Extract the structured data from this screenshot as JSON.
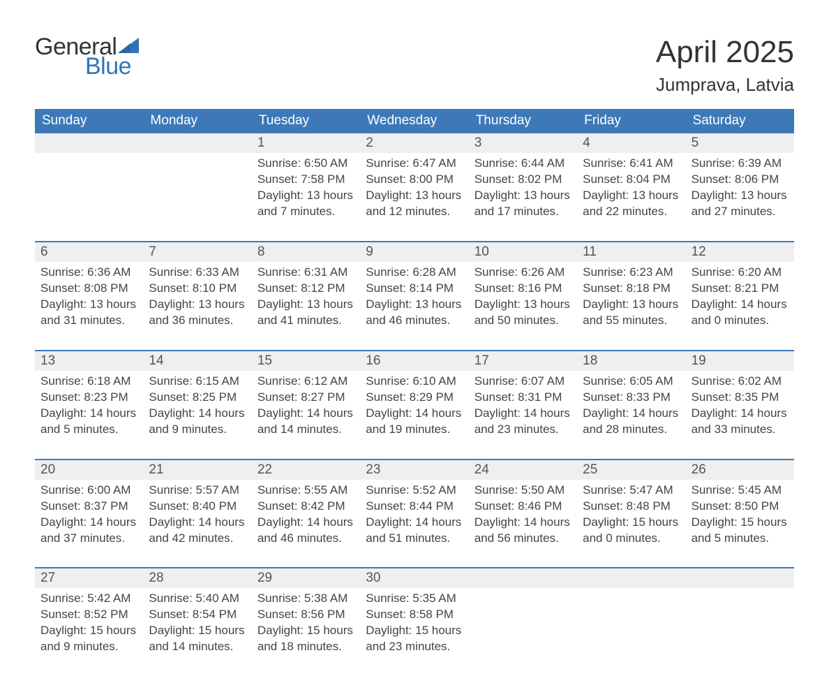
{
  "brand": {
    "word1": "General",
    "word2": "Blue",
    "accent_color": "#2f75b5"
  },
  "title": {
    "month": "April 2025",
    "location": "Jumprava, Latvia"
  },
  "colors": {
    "header_bg": "#3d79b8",
    "header_text": "#ffffff",
    "date_bg": "#efefef",
    "week_divider": "#3d79b8",
    "body_text": "#444444",
    "page_bg": "#ffffff"
  },
  "weekdays": [
    "Sunday",
    "Monday",
    "Tuesday",
    "Wednesday",
    "Thursday",
    "Friday",
    "Saturday"
  ],
  "weeks": [
    [
      null,
      null,
      {
        "n": "1",
        "sunrise": "6:50 AM",
        "sunset": "7:58 PM",
        "daylight1": "Daylight: 13 hours",
        "daylight2": "and 7 minutes."
      },
      {
        "n": "2",
        "sunrise": "6:47 AM",
        "sunset": "8:00 PM",
        "daylight1": "Daylight: 13 hours",
        "daylight2": "and 12 minutes."
      },
      {
        "n": "3",
        "sunrise": "6:44 AM",
        "sunset": "8:02 PM",
        "daylight1": "Daylight: 13 hours",
        "daylight2": "and 17 minutes."
      },
      {
        "n": "4",
        "sunrise": "6:41 AM",
        "sunset": "8:04 PM",
        "daylight1": "Daylight: 13 hours",
        "daylight2": "and 22 minutes."
      },
      {
        "n": "5",
        "sunrise": "6:39 AM",
        "sunset": "8:06 PM",
        "daylight1": "Daylight: 13 hours",
        "daylight2": "and 27 minutes."
      }
    ],
    [
      {
        "n": "6",
        "sunrise": "6:36 AM",
        "sunset": "8:08 PM",
        "daylight1": "Daylight: 13 hours",
        "daylight2": "and 31 minutes."
      },
      {
        "n": "7",
        "sunrise": "6:33 AM",
        "sunset": "8:10 PM",
        "daylight1": "Daylight: 13 hours",
        "daylight2": "and 36 minutes."
      },
      {
        "n": "8",
        "sunrise": "6:31 AM",
        "sunset": "8:12 PM",
        "daylight1": "Daylight: 13 hours",
        "daylight2": "and 41 minutes."
      },
      {
        "n": "9",
        "sunrise": "6:28 AM",
        "sunset": "8:14 PM",
        "daylight1": "Daylight: 13 hours",
        "daylight2": "and 46 minutes."
      },
      {
        "n": "10",
        "sunrise": "6:26 AM",
        "sunset": "8:16 PM",
        "daylight1": "Daylight: 13 hours",
        "daylight2": "and 50 minutes."
      },
      {
        "n": "11",
        "sunrise": "6:23 AM",
        "sunset": "8:18 PM",
        "daylight1": "Daylight: 13 hours",
        "daylight2": "and 55 minutes."
      },
      {
        "n": "12",
        "sunrise": "6:20 AM",
        "sunset": "8:21 PM",
        "daylight1": "Daylight: 14 hours",
        "daylight2": "and 0 minutes."
      }
    ],
    [
      {
        "n": "13",
        "sunrise": "6:18 AM",
        "sunset": "8:23 PM",
        "daylight1": "Daylight: 14 hours",
        "daylight2": "and 5 minutes."
      },
      {
        "n": "14",
        "sunrise": "6:15 AM",
        "sunset": "8:25 PM",
        "daylight1": "Daylight: 14 hours",
        "daylight2": "and 9 minutes."
      },
      {
        "n": "15",
        "sunrise": "6:12 AM",
        "sunset": "8:27 PM",
        "daylight1": "Daylight: 14 hours",
        "daylight2": "and 14 minutes."
      },
      {
        "n": "16",
        "sunrise": "6:10 AM",
        "sunset": "8:29 PM",
        "daylight1": "Daylight: 14 hours",
        "daylight2": "and 19 minutes."
      },
      {
        "n": "17",
        "sunrise": "6:07 AM",
        "sunset": "8:31 PM",
        "daylight1": "Daylight: 14 hours",
        "daylight2": "and 23 minutes."
      },
      {
        "n": "18",
        "sunrise": "6:05 AM",
        "sunset": "8:33 PM",
        "daylight1": "Daylight: 14 hours",
        "daylight2": "and 28 minutes."
      },
      {
        "n": "19",
        "sunrise": "6:02 AM",
        "sunset": "8:35 PM",
        "daylight1": "Daylight: 14 hours",
        "daylight2": "and 33 minutes."
      }
    ],
    [
      {
        "n": "20",
        "sunrise": "6:00 AM",
        "sunset": "8:37 PM",
        "daylight1": "Daylight: 14 hours",
        "daylight2": "and 37 minutes."
      },
      {
        "n": "21",
        "sunrise": "5:57 AM",
        "sunset": "8:40 PM",
        "daylight1": "Daylight: 14 hours",
        "daylight2": "and 42 minutes."
      },
      {
        "n": "22",
        "sunrise": "5:55 AM",
        "sunset": "8:42 PM",
        "daylight1": "Daylight: 14 hours",
        "daylight2": "and 46 minutes."
      },
      {
        "n": "23",
        "sunrise": "5:52 AM",
        "sunset": "8:44 PM",
        "daylight1": "Daylight: 14 hours",
        "daylight2": "and 51 minutes."
      },
      {
        "n": "24",
        "sunrise": "5:50 AM",
        "sunset": "8:46 PM",
        "daylight1": "Daylight: 14 hours",
        "daylight2": "and 56 minutes."
      },
      {
        "n": "25",
        "sunrise": "5:47 AM",
        "sunset": "8:48 PM",
        "daylight1": "Daylight: 15 hours",
        "daylight2": "and 0 minutes."
      },
      {
        "n": "26",
        "sunrise": "5:45 AM",
        "sunset": "8:50 PM",
        "daylight1": "Daylight: 15 hours",
        "daylight2": "and 5 minutes."
      }
    ],
    [
      {
        "n": "27",
        "sunrise": "5:42 AM",
        "sunset": "8:52 PM",
        "daylight1": "Daylight: 15 hours",
        "daylight2": "and 9 minutes."
      },
      {
        "n": "28",
        "sunrise": "5:40 AM",
        "sunset": "8:54 PM",
        "daylight1": "Daylight: 15 hours",
        "daylight2": "and 14 minutes."
      },
      {
        "n": "29",
        "sunrise": "5:38 AM",
        "sunset": "8:56 PM",
        "daylight1": "Daylight: 15 hours",
        "daylight2": "and 18 minutes."
      },
      {
        "n": "30",
        "sunrise": "5:35 AM",
        "sunset": "8:58 PM",
        "daylight1": "Daylight: 15 hours",
        "daylight2": "and 23 minutes."
      },
      null,
      null,
      null
    ]
  ],
  "labels": {
    "sunrise": "Sunrise: ",
    "sunset": "Sunset: "
  }
}
